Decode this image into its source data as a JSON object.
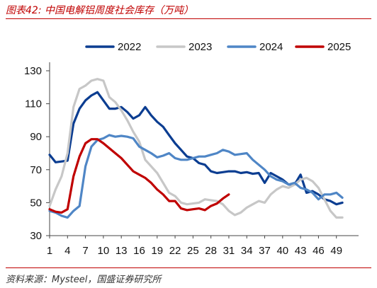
{
  "figure": {
    "title": "图表42:  中国电解铝周度社会库存（万吨）",
    "source": "资料来源：Mysteel，国盛证券研究所"
  },
  "chart_data": {
    "type": "line",
    "title": "",
    "xlabel": "",
    "ylabel": "",
    "xlim": [
      1,
      52
    ],
    "ylim": [
      30,
      130
    ],
    "x_ticks": [
      1,
      4,
      7,
      10,
      13,
      16,
      19,
      22,
      25,
      28,
      31,
      34,
      37,
      40,
      43,
      46,
      49
    ],
    "y_ticks": [
      30,
      50,
      70,
      90,
      110,
      130
    ],
    "grid": false,
    "legend_position": "top",
    "series": [
      {
        "name": "2022",
        "color": "#0b3d91",
        "x": [
          1,
          2,
          3,
          4,
          5,
          6,
          7,
          8,
          9,
          10,
          11,
          12,
          13,
          14,
          15,
          16,
          17,
          18,
          19,
          20,
          21,
          22,
          23,
          24,
          25,
          26,
          27,
          28,
          29,
          30,
          31,
          32,
          33,
          34,
          35,
          36,
          37,
          38,
          39,
          40,
          41,
          42,
          43,
          44,
          45,
          46,
          47,
          48,
          49,
          50
        ],
        "values": [
          79,
          74.5,
          75,
          75.5,
          98,
          107,
          112,
          115,
          117,
          112,
          107,
          107,
          108,
          105,
          101,
          103,
          108,
          103,
          99,
          96,
          91,
          86,
          82,
          78,
          77,
          74,
          73,
          69,
          68,
          68.5,
          69,
          69,
          68,
          68.5,
          67.5,
          68,
          62,
          68,
          66,
          64,
          61,
          61,
          67,
          56,
          57,
          55,
          52,
          51,
          49,
          50
        ]
      },
      {
        "name": "2023",
        "color": "#c7c7c7",
        "x": [
          1,
          2,
          3,
          4,
          5,
          6,
          7,
          8,
          9,
          10,
          11,
          12,
          13,
          14,
          15,
          16,
          17,
          18,
          19,
          20,
          21,
          22,
          23,
          24,
          25,
          26,
          27,
          28,
          29,
          30,
          31,
          32,
          33,
          34,
          35,
          36,
          37,
          38,
          39,
          40,
          41,
          42,
          43,
          44,
          45,
          46,
          47,
          48,
          49,
          50
        ],
        "values": [
          48,
          58,
          66,
          80,
          108,
          119,
          121,
          124,
          125,
          124,
          114,
          111,
          106,
          100,
          93,
          87,
          76,
          72,
          68,
          62,
          56,
          54,
          50,
          49,
          49.5,
          50,
          52,
          51.5,
          51,
          49,
          45,
          42.5,
          44,
          47,
          49,
          51,
          50,
          55,
          58,
          60,
          59,
          61,
          64,
          65,
          63,
          59,
          52,
          45,
          41,
          41
        ]
      },
      {
        "name": "2024",
        "color": "#4f86c6",
        "x": [
          1,
          2,
          3,
          4,
          5,
          6,
          7,
          8,
          9,
          10,
          11,
          12,
          13,
          14,
          15,
          16,
          17,
          18,
          19,
          20,
          21,
          22,
          23,
          24,
          25,
          26,
          27,
          28,
          29,
          30,
          31,
          32,
          33,
          34,
          35,
          36,
          37,
          38,
          39,
          40,
          41,
          42,
          43,
          44,
          45,
          46,
          47,
          48,
          49,
          50
        ],
        "values": [
          45,
          44,
          42,
          41,
          45,
          48,
          72,
          84,
          88,
          89,
          91,
          90,
          90.5,
          90,
          89,
          84,
          82,
          80,
          77.5,
          78.5,
          80,
          77,
          76,
          76,
          77,
          78,
          78,
          79,
          80,
          82,
          81,
          79,
          79.5,
          80,
          76,
          73,
          70,
          66,
          64,
          63,
          61,
          62,
          59,
          58,
          56,
          52,
          55,
          55,
          56,
          53
        ]
      },
      {
        "name": "2025",
        "color": "#c00000",
        "x": [
          1,
          2,
          3,
          4,
          5,
          6,
          7,
          8,
          9,
          10,
          11,
          12,
          13,
          14,
          15,
          16,
          17,
          18,
          19,
          20,
          21,
          22,
          23,
          24,
          25,
          26,
          27,
          28,
          29,
          30,
          31
        ],
        "values": [
          46,
          44.5,
          44,
          46,
          66,
          78,
          86,
          88.5,
          88.5,
          86,
          83,
          80,
          77,
          73,
          69,
          67,
          65,
          62,
          58,
          55,
          51,
          51,
          46.5,
          45.5,
          46,
          46.5,
          45.5,
          48,
          49.5,
          52.5,
          55
        ]
      }
    ]
  }
}
